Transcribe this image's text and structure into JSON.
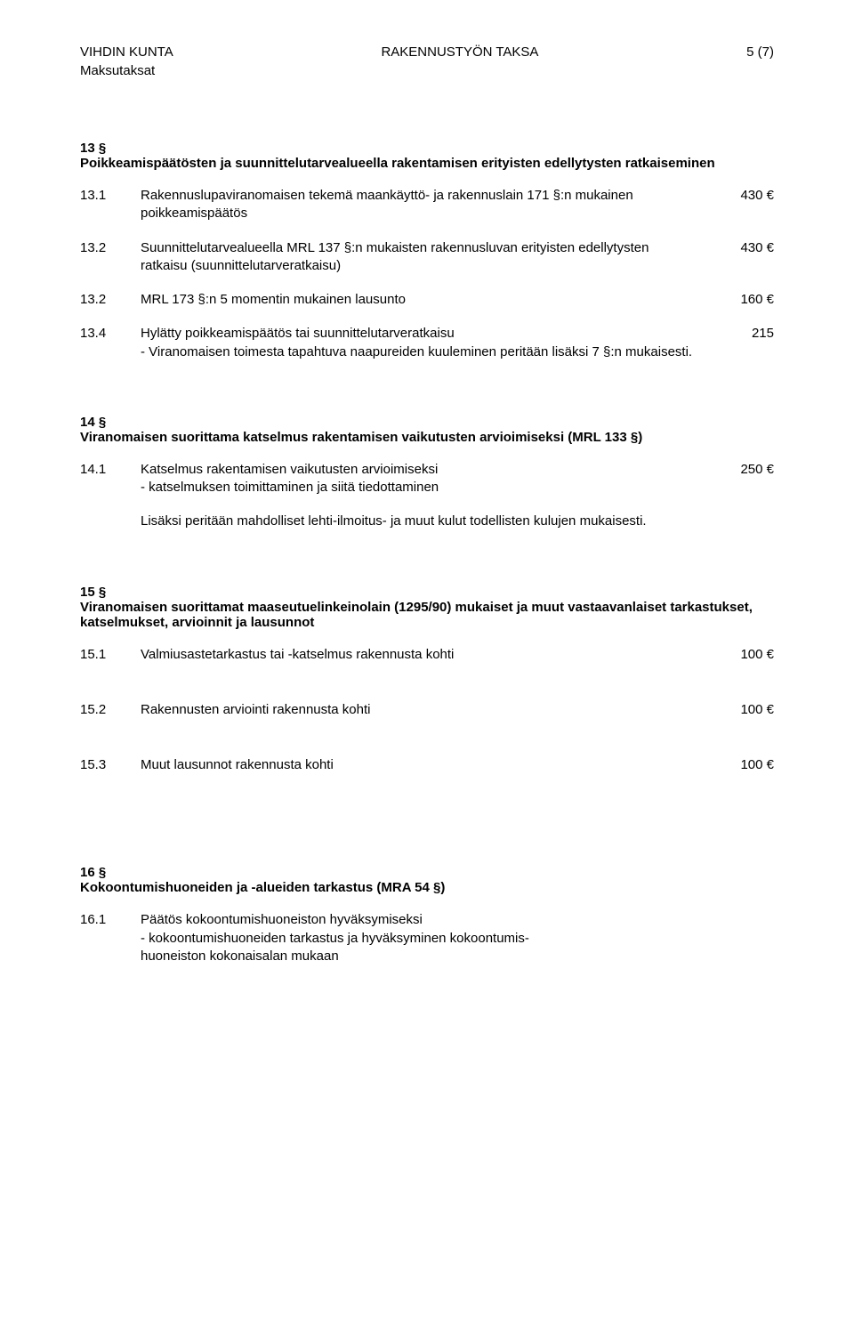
{
  "header": {
    "org": "VIHDIN KUNTA",
    "title": "RAKENNUSTYÖN TAKSA",
    "pagenum": "5 (7)",
    "subhead": "Maksutaksat"
  },
  "s13": {
    "num": "13 §",
    "title": "Poikkeamispäätösten ja suunnittelutarvealueella rakentamisen erityisten edellytysten ratkaiseminen",
    "r1": {
      "num": "13.1",
      "text": "Rakennuslupaviranomaisen tekemä maankäyttö- ja rakennuslain 171 §:n mukainen poikkeamispäätös",
      "val": "430 €"
    },
    "r2": {
      "num": "13.2",
      "text": "Suunnittelutarvealueella MRL 137 §:n mukaisten rakennusluvan erityisten edellytysten ratkaisu (suunnittelutarveratkaisu)",
      "val": "430 €"
    },
    "r3": {
      "num": "13.2",
      "text": "MRL 173 §:n 5 momentin mukainen lausunto",
      "val": "160 €"
    },
    "r4": {
      "num": "13.4",
      "text": "Hylätty poikkeamispäätös tai suunnittelutarveratkaisu\n- Viranomaisen toimesta tapahtuva naapureiden kuuleminen peritään lisäksi 7 §:n mukaisesti.",
      "val": "215"
    }
  },
  "s14": {
    "num": "14 §",
    "title": "Viranomaisen suorittama katselmus rakentamisen vaikutusten arvioimiseksi (MRL 133 §)",
    "r1": {
      "num": "14.1",
      "text": "Katselmus rakentamisen vaikutusten arvioimiseksi\n- katselmuksen toimittaminen ja siitä tiedottaminen",
      "val": "250 €"
    },
    "note": "Lisäksi peritään mahdolliset lehti-ilmoitus- ja muut kulut todellisten kulujen mukaisesti."
  },
  "s15": {
    "num": "15 §",
    "title": "Viranomaisen suorittamat maaseutuelinkeinolain (1295/90) mukaiset ja muut vastaavanlaiset tarkastukset, katselmukset, arvioinnit ja lausunnot",
    "r1": {
      "num": "15.1",
      "text": "Valmiusastetarkastus tai -katselmus rakennusta kohti",
      "val": "100 €"
    },
    "r2": {
      "num": "15.2",
      "text": "Rakennusten arviointi rakennusta kohti",
      "val": "100 €"
    },
    "r3": {
      "num": "15.3",
      "text": "Muut lausunnot  rakennusta kohti",
      "val": "100 €"
    }
  },
  "s16": {
    "num": "16 §",
    "title": "Kokoontumishuoneiden ja -alueiden tarkastus (MRA 54 §)",
    "r1": {
      "num": "16.1",
      "text": "Päätös kokoontumishuoneiston hyväksymiseksi\n- kokoontumishuoneiden tarkastus ja hyväksyminen kokoontumis-\nhuoneiston kokonaisalan mukaan",
      "val": ""
    }
  }
}
